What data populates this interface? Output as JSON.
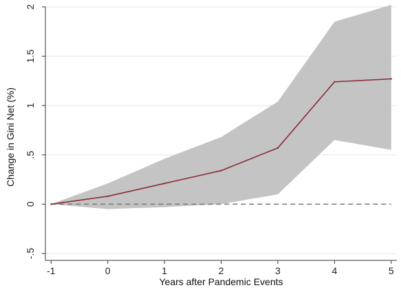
{
  "chart_data": {
    "type": "line",
    "xlabel": "Years after Pandemic Events",
    "ylabel": "Change in Gini Net (%)",
    "x": [
      -1,
      0,
      1,
      2,
      3,
      4,
      5
    ],
    "x_ticks": [
      "-1",
      "0",
      "1",
      "2",
      "3",
      "4",
      "5"
    ],
    "y_ticks": [
      {
        "value": -0.5,
        "label": "-.5"
      },
      {
        "value": 0,
        "label": "0"
      },
      {
        "value": 0.5,
        "label": ".5"
      },
      {
        "value": 1,
        "label": "1"
      },
      {
        "value": 1.5,
        "label": "1.5"
      },
      {
        "value": 2,
        "label": "2"
      }
    ],
    "xlim": [
      -1.1,
      5.1
    ],
    "ylim": [
      -0.57,
      2.0
    ],
    "grid": "horizontal",
    "reference_line": {
      "y": 0,
      "style": "dashed"
    },
    "series": [
      {
        "values": [
          0,
          0.08,
          0.21,
          0.34,
          0.57,
          1.24,
          1.27
        ],
        "lower": [
          0,
          -0.05,
          -0.03,
          0.0,
          0.1,
          0.65,
          0.55
        ],
        "upper": [
          0,
          0.21,
          0.46,
          0.68,
          1.04,
          1.85,
          2.02
        ]
      }
    ],
    "colors": {
      "line": "#8b2c34",
      "band": "#c4c4c4",
      "reference": "#777777",
      "grid": "#e6e6e6",
      "axis": "#333333"
    }
  }
}
